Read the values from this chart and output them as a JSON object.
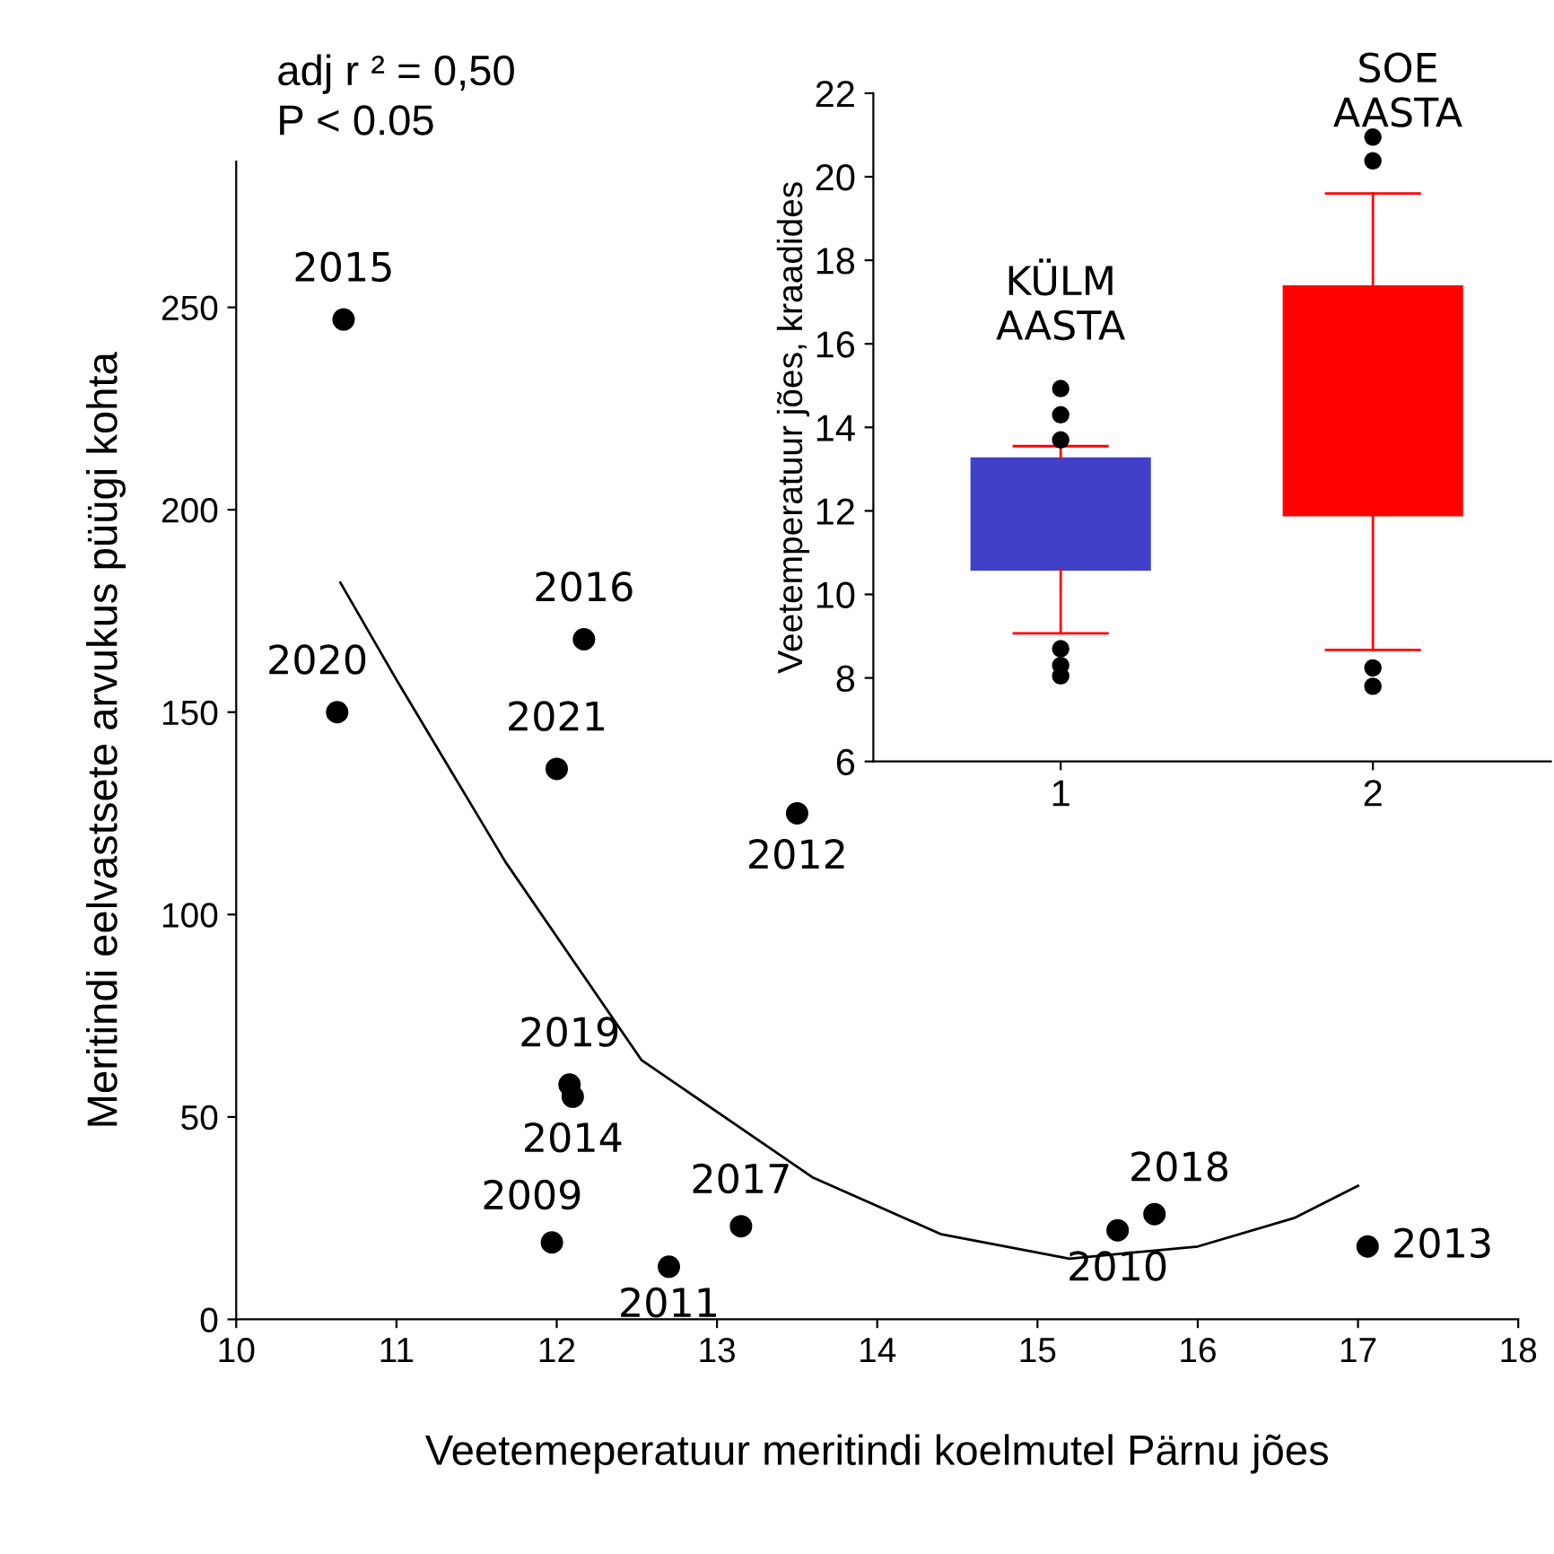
{
  "chart_data": [
    {
      "type": "scatter",
      "xlabel": "Veetemeperatuur meritindi koelmutel Pärnu jões",
      "ylabel": "Meritindi eelvastsete arvukus püügi kohta",
      "annotations": [
        "adj r ² = 0,50",
        "P < 0.05",
        {
          "text": "2015",
          "x": 10.67,
          "y": 247
        },
        {
          "text": "2020",
          "x": 10.63,
          "y": 150
        },
        {
          "text": "2016",
          "x": 12.17,
          "y": 168
        },
        {
          "text": "2021",
          "x": 12.0,
          "y": 136
        },
        {
          "text": "2012",
          "x": 13.5,
          "y": 125
        },
        {
          "text": "2019",
          "x": 12.08,
          "y": 58
        },
        {
          "text": "2014",
          "x": 12.1,
          "y": 55
        },
        {
          "text": "2009",
          "x": 11.97,
          "y": 19
        },
        {
          "text": "2011",
          "x": 12.7,
          "y": 13
        },
        {
          "text": "2017",
          "x": 13.15,
          "y": 23
        },
        {
          "text": "2010",
          "x": 15.5,
          "y": 22
        },
        {
          "text": "2018",
          "x": 15.73,
          "y": 26
        },
        {
          "text": "2013",
          "x": 17.06,
          "y": 18
        }
      ],
      "series": [
        {
          "type": "scatter",
          "color": "#000000",
          "marker": "circle",
          "x": [
            10.67,
            10.63,
            12.17,
            12.0,
            13.5,
            12.08,
            12.1,
            11.97,
            12.7,
            13.15,
            15.5,
            15.73,
            17.06
          ],
          "values": [
            247,
            150,
            168,
            136,
            125,
            58,
            55,
            19,
            13,
            23,
            22,
            26,
            18
          ]
        },
        {
          "type": "line",
          "color": "#000000",
          "x": [
            10.65,
            11.0,
            11.68,
            12.53,
            13.6,
            14.4,
            15.2,
            16.0,
            16.6,
            17.0
          ],
          "values": [
            182,
            158,
            113,
            64,
            35,
            21,
            15,
            18,
            25,
            33
          ]
        }
      ],
      "xlim": [
        10,
        18
      ],
      "xticks": [
        10,
        11,
        12,
        13,
        14,
        15,
        16,
        17,
        18
      ],
      "ylim": [
        0,
        286
      ],
      "yticks": [
        0,
        50,
        100,
        150,
        200,
        250
      ],
      "grid": false
    },
    {
      "type": "box",
      "ylabel": "Veetemperatuur jões, kraadides",
      "categories": [
        "1",
        "2"
      ],
      "colors": [
        "#4040c8",
        "#ff0000"
      ],
      "annotations": [
        "KÜLM\nAASTA",
        "SOE\nAASTA"
      ],
      "boxes": [
        {
          "low": 9.07,
          "q1": 10.6,
          "q3": 13.25,
          "high": 13.55,
          "outliers": [
            14.93,
            14.3,
            13.7,
            8.7,
            8.3,
            8.05
          ]
        },
        {
          "low": 8.67,
          "q1": 11.9,
          "q3": 17.37,
          "high": 19.6,
          "outliers": [
            20.95,
            20.38,
            8.24,
            7.8
          ]
        }
      ],
      "ylim": [
        6,
        22
      ],
      "yticks": [
        6,
        8,
        10,
        12,
        14,
        16,
        18,
        20,
        22
      ],
      "grid": false
    }
  ]
}
